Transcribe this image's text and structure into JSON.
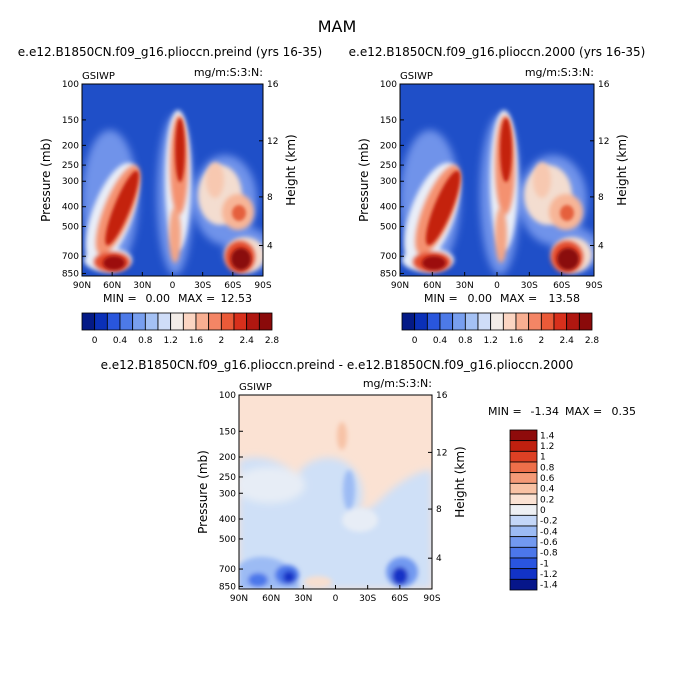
{
  "page_title": "MAM",
  "colors": {
    "bg_blue": "#1f4fc8",
    "neutral": "#eaeff8",
    "palette": [
      "#041a86",
      "#0a30b8",
      "#2956dc",
      "#4d7ae8",
      "#789fef",
      "#a4c1f4",
      "#cfddf8",
      "#f3ede8",
      "#fbd5c2",
      "#f8af92",
      "#f48565",
      "#ea5a38",
      "#d8301c",
      "#b01710",
      "#8a0a0a"
    ],
    "diff_palette": [
      "#06168a",
      "#1233c6",
      "#2a55e0",
      "#4c77ea",
      "#7299f0",
      "#9cbbf4",
      "#c4d7f8",
      "#eef0f4",
      "#fbe2d3",
      "#f9c2a4",
      "#f59a77",
      "#ee6f4a",
      "#dd4024",
      "#c0200f",
      "#8e0b0b"
    ]
  },
  "chart_data": [
    {
      "id": "panel1",
      "type": "heatmap",
      "title": "e.e12.B1850CN.f09_g16.plioccn.preind (yrs 16-35)",
      "left_label": "GSIWP",
      "units": "mg/m:S:3:N:",
      "ylabel": "Pressure (mb)",
      "ylabel_right": "Height (km)",
      "x_ticks": [
        "90N",
        "60N",
        "30N",
        "0",
        "30S",
        "60S",
        "90S"
      ],
      "y_ticks": [
        "100",
        "150",
        "200",
        "250",
        "300",
        "400",
        "500",
        "700",
        "850"
      ],
      "right_ticks": [
        "16",
        "12",
        "8",
        "4"
      ],
      "min_text": "MIN =",
      "min_value": "0.00",
      "max_text": "MAX =",
      "max_value": "12.53",
      "colorbar_labels": [
        "0",
        "0.4",
        "0.8",
        "1.2",
        "1.6",
        "2",
        "2.4",
        "2.8"
      ]
    },
    {
      "id": "panel2",
      "type": "heatmap",
      "title": "e.e12.B1850CN.f09_g16.plioccn.2000 (yrs 16-35)",
      "left_label": "GSIWP",
      "units": "mg/m:S:3:N:",
      "ylabel": "Pressure (mb)",
      "ylabel_right": "Height (km)",
      "x_ticks": [
        "90N",
        "60N",
        "30N",
        "0",
        "30S",
        "60S",
        "90S"
      ],
      "y_ticks": [
        "100",
        "150",
        "200",
        "250",
        "300",
        "400",
        "500",
        "700",
        "850"
      ],
      "right_ticks": [
        "16",
        "12",
        "8",
        "4"
      ],
      "min_text": "MIN =",
      "min_value": "0.00",
      "max_text": "MAX =",
      "max_value": "13.58",
      "colorbar_labels": [
        "0",
        "0.4",
        "0.8",
        "1.2",
        "1.6",
        "2",
        "2.4",
        "2.8"
      ]
    },
    {
      "id": "panel3",
      "type": "heatmap",
      "title": "e.e12.B1850CN.f09_g16.plioccn.preind - e.e12.B1850CN.f09_g16.plioccn.2000",
      "left_label": "GSIWP",
      "units": "mg/m:S:3:N:",
      "ylabel": "Pressure (mb)",
      "ylabel_right": "Height (km)",
      "x_ticks": [
        "90N",
        "60N",
        "30N",
        "0",
        "30S",
        "60S",
        "90S"
      ],
      "y_ticks": [
        "100",
        "150",
        "200",
        "250",
        "300",
        "400",
        "500",
        "700",
        "850"
      ],
      "right_ticks": [
        "16",
        "12",
        "8",
        "4"
      ],
      "min_text": "MIN =",
      "min_value": "-1.34",
      "max_text": "MAX =",
      "max_value": "0.35",
      "colorbar_labels": [
        "1.4",
        "1.2",
        "1",
        "0.8",
        "0.6",
        "0.4",
        "0.2",
        "0",
        "-0.2",
        "-0.4",
        "-0.6",
        "-0.8",
        "-1",
        "-1.2",
        "-1.4"
      ]
    }
  ]
}
